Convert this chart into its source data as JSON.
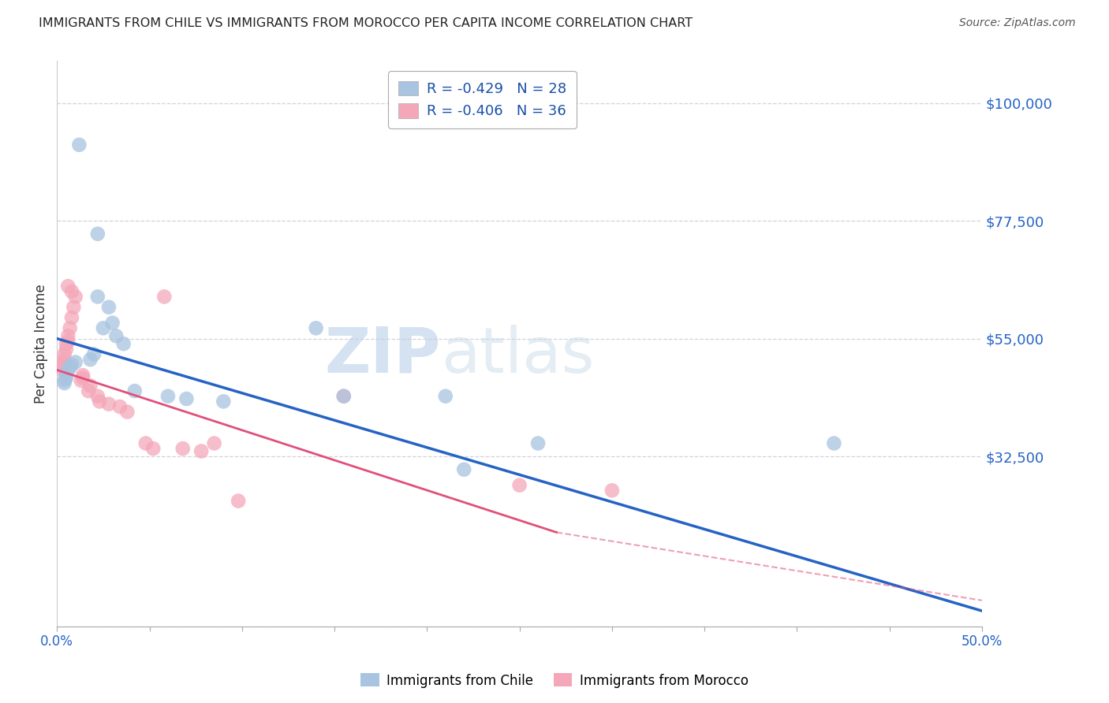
{
  "title": "IMMIGRANTS FROM CHILE VS IMMIGRANTS FROM MOROCCO PER CAPITA INCOME CORRELATION CHART",
  "source": "Source: ZipAtlas.com",
  "ylabel": "Per Capita Income",
  "x_tick_labels_ends": [
    "0.0%",
    "50.0%"
  ],
  "y_ticks": [
    0,
    32500,
    55000,
    77500,
    100000
  ],
  "y_tick_labels": [
    "",
    "$32,500",
    "$55,000",
    "$77,500",
    "$100,000"
  ],
  "xlim": [
    0.0,
    0.5
  ],
  "ylim": [
    0,
    108000
  ],
  "legend_chile_R": "-0.429",
  "legend_chile_N": "28",
  "legend_morocco_R": "-0.406",
  "legend_morocco_N": "36",
  "legend_bottom_chile": "Immigrants from Chile",
  "legend_bottom_morocco": "Immigrants from Morocco",
  "chile_color": "#a8c4e0",
  "morocco_color": "#f4a7b9",
  "chile_line_color": "#2563c4",
  "morocco_line_color": "#e0507a",
  "watermark_zip": "ZIP",
  "watermark_atlas": "atlas",
  "chile_line": [
    [
      0.0,
      55000
    ],
    [
      0.5,
      3000
    ]
  ],
  "morocco_line_solid": [
    [
      0.0,
      49000
    ],
    [
      0.27,
      18000
    ]
  ],
  "morocco_line_dashed": [
    [
      0.27,
      18000
    ],
    [
      0.5,
      5000
    ]
  ],
  "chile_points": [
    [
      0.012,
      92000
    ],
    [
      0.022,
      75000
    ],
    [
      0.022,
      63000
    ],
    [
      0.028,
      61000
    ],
    [
      0.03,
      58000
    ],
    [
      0.025,
      57000
    ],
    [
      0.032,
      55500
    ],
    [
      0.036,
      54000
    ],
    [
      0.02,
      52000
    ],
    [
      0.018,
      51000
    ],
    [
      0.01,
      50500
    ],
    [
      0.008,
      50000
    ],
    [
      0.007,
      49500
    ],
    [
      0.006,
      49000
    ],
    [
      0.005,
      48000
    ],
    [
      0.005,
      47500
    ],
    [
      0.004,
      47000
    ],
    [
      0.004,
      46500
    ],
    [
      0.042,
      45000
    ],
    [
      0.06,
      44000
    ],
    [
      0.07,
      43500
    ],
    [
      0.09,
      43000
    ],
    [
      0.14,
      57000
    ],
    [
      0.155,
      44000
    ],
    [
      0.21,
      44000
    ],
    [
      0.22,
      30000
    ],
    [
      0.26,
      35000
    ],
    [
      0.42,
      35000
    ]
  ],
  "morocco_points": [
    [
      0.006,
      65000
    ],
    [
      0.008,
      64000
    ],
    [
      0.01,
      63000
    ],
    [
      0.009,
      61000
    ],
    [
      0.008,
      59000
    ],
    [
      0.007,
      57000
    ],
    [
      0.006,
      55500
    ],
    [
      0.006,
      54500
    ],
    [
      0.005,
      54000
    ],
    [
      0.005,
      53000
    ],
    [
      0.004,
      52000
    ],
    [
      0.004,
      51000
    ],
    [
      0.004,
      50500
    ],
    [
      0.003,
      50000
    ],
    [
      0.003,
      49500
    ],
    [
      0.003,
      49000
    ],
    [
      0.014,
      48000
    ],
    [
      0.014,
      47500
    ],
    [
      0.013,
      47000
    ],
    [
      0.018,
      46000
    ],
    [
      0.017,
      45000
    ],
    [
      0.022,
      44000
    ],
    [
      0.023,
      43000
    ],
    [
      0.028,
      42500
    ],
    [
      0.034,
      42000
    ],
    [
      0.038,
      41000
    ],
    [
      0.048,
      35000
    ],
    [
      0.052,
      34000
    ],
    [
      0.058,
      63000
    ],
    [
      0.068,
      34000
    ],
    [
      0.078,
      33500
    ],
    [
      0.085,
      35000
    ],
    [
      0.098,
      24000
    ],
    [
      0.155,
      44000
    ],
    [
      0.25,
      27000
    ],
    [
      0.3,
      26000
    ]
  ],
  "background_color": "#ffffff",
  "grid_color": "#c8c8d0"
}
